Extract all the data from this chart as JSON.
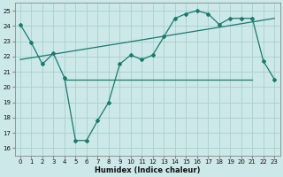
{
  "x": [
    0,
    1,
    2,
    3,
    4,
    5,
    6,
    7,
    8,
    9,
    10,
    11,
    12,
    13,
    14,
    15,
    16,
    17,
    18,
    19,
    20,
    21,
    22,
    23
  ],
  "line1": [
    24.1,
    22.9,
    21.5,
    22.2,
    20.6,
    16.5,
    16.5,
    17.8,
    19.0,
    21.5,
    22.1,
    21.8,
    22.1,
    23.3,
    24.5,
    24.8,
    25.0,
    24.8,
    24.1,
    24.5,
    24.5,
    24.5,
    21.7,
    20.5
  ],
  "line2_x": [
    0,
    23
  ],
  "line2_y": [
    21.8,
    24.5
  ],
  "line3_x": [
    4,
    21
  ],
  "line3_y": [
    20.5,
    20.5
  ],
  "line_color": "#1a7a6e",
  "bg_color": "#cce8e8",
  "grid_color": "#aacfcf",
  "xlabel": "Humidex (Indice chaleur)",
  "ylim": [
    15.5,
    25.5
  ],
  "xlim": [
    -0.5,
    23.5
  ],
  "yticks": [
    16,
    17,
    18,
    19,
    20,
    21,
    22,
    23,
    24,
    25
  ],
  "xticks": [
    0,
    1,
    2,
    3,
    4,
    5,
    6,
    7,
    8,
    9,
    10,
    11,
    12,
    13,
    14,
    15,
    16,
    17,
    18,
    19,
    20,
    21,
    22,
    23
  ],
  "tick_fontsize": 5.0,
  "xlabel_fontsize": 6.0
}
